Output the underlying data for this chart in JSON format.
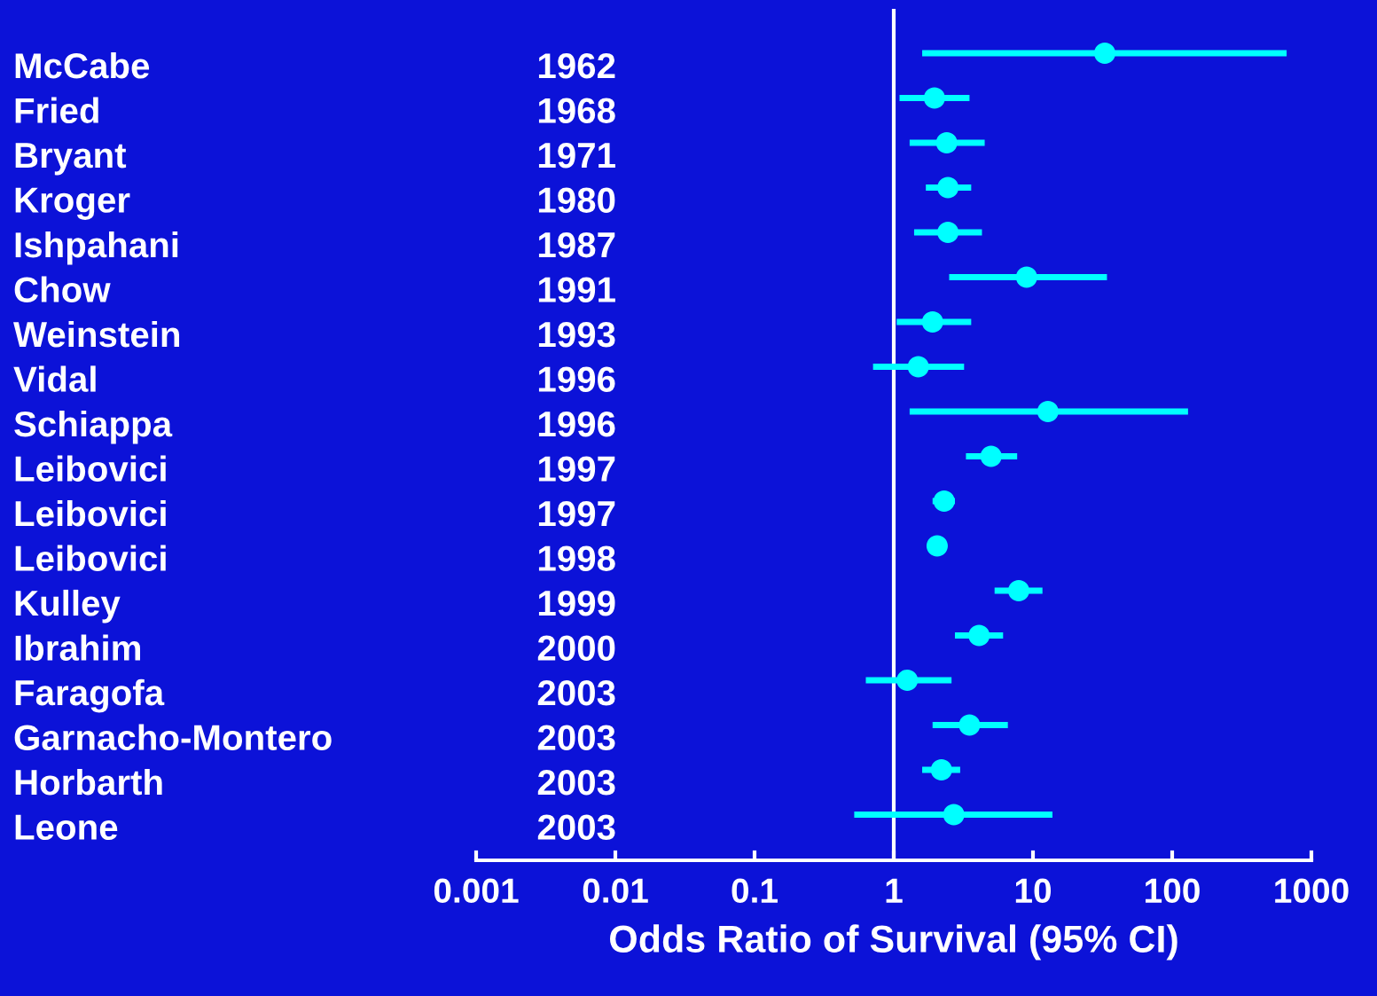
{
  "chart_data": {
    "type": "scatter",
    "orientation": "horizontal",
    "xlabel": "Odds Ratio of Survival (95% CI)",
    "categories": [
      "McCabe",
      "Fried",
      "Bryant",
      "Kroger",
      "Ishpahani",
      "Chow",
      "Weinstein",
      "Vidal",
      "Schiappa",
      "Leibovici",
      "Leibovici",
      "Leibovici",
      "Kulley",
      "Ibrahim",
      "Faragofa",
      "Garnacho-Montero",
      "Horbarth",
      "Leone"
    ],
    "y2_categories": [
      "1962",
      "1968",
      "1971",
      "1980",
      "1987",
      "1991",
      "1993",
      "1996",
      "1996",
      "1997",
      "1997",
      "1998",
      "1999",
      "2000",
      "2003",
      "2003",
      "2003",
      "2003"
    ],
    "color": "#00ffff",
    "values": [
      32.8,
      1.96,
      2.4,
      2.45,
      2.45,
      9.0,
      1.9,
      1.5,
      12.8,
      5.0,
      2.3,
      2.05,
      7.9,
      4.1,
      1.25,
      3.5,
      2.2,
      2.7
    ],
    "errors": [
      [
        1.6,
        664
      ],
      [
        1.1,
        3.5
      ],
      [
        1.3,
        4.5
      ],
      [
        1.7,
        3.6
      ],
      [
        1.4,
        4.3
      ],
      [
        2.5,
        34
      ],
      [
        1.05,
        3.6
      ],
      [
        0.71,
        3.2
      ],
      [
        1.3,
        130
      ],
      [
        3.3,
        7.7
      ],
      [
        1.9,
        2.75
      ],
      null,
      [
        5.3,
        11.7
      ],
      [
        2.75,
        6.1
      ],
      [
        0.63,
        2.6
      ],
      [
        1.9,
        6.6
      ],
      [
        1.6,
        3.0
      ],
      [
        0.52,
        13.8
      ]
    ],
    "log": "x",
    "xlim": [
      0.001,
      1000
    ],
    "xticks": [
      0.001,
      0.01,
      0.1,
      1,
      10,
      100,
      1000
    ],
    "ref_lines": [
      {
        "axis": "x",
        "value": 1,
        "color": "#ffffff"
      }
    ],
    "marker": "circle",
    "grid": false,
    "legend": false
  }
}
